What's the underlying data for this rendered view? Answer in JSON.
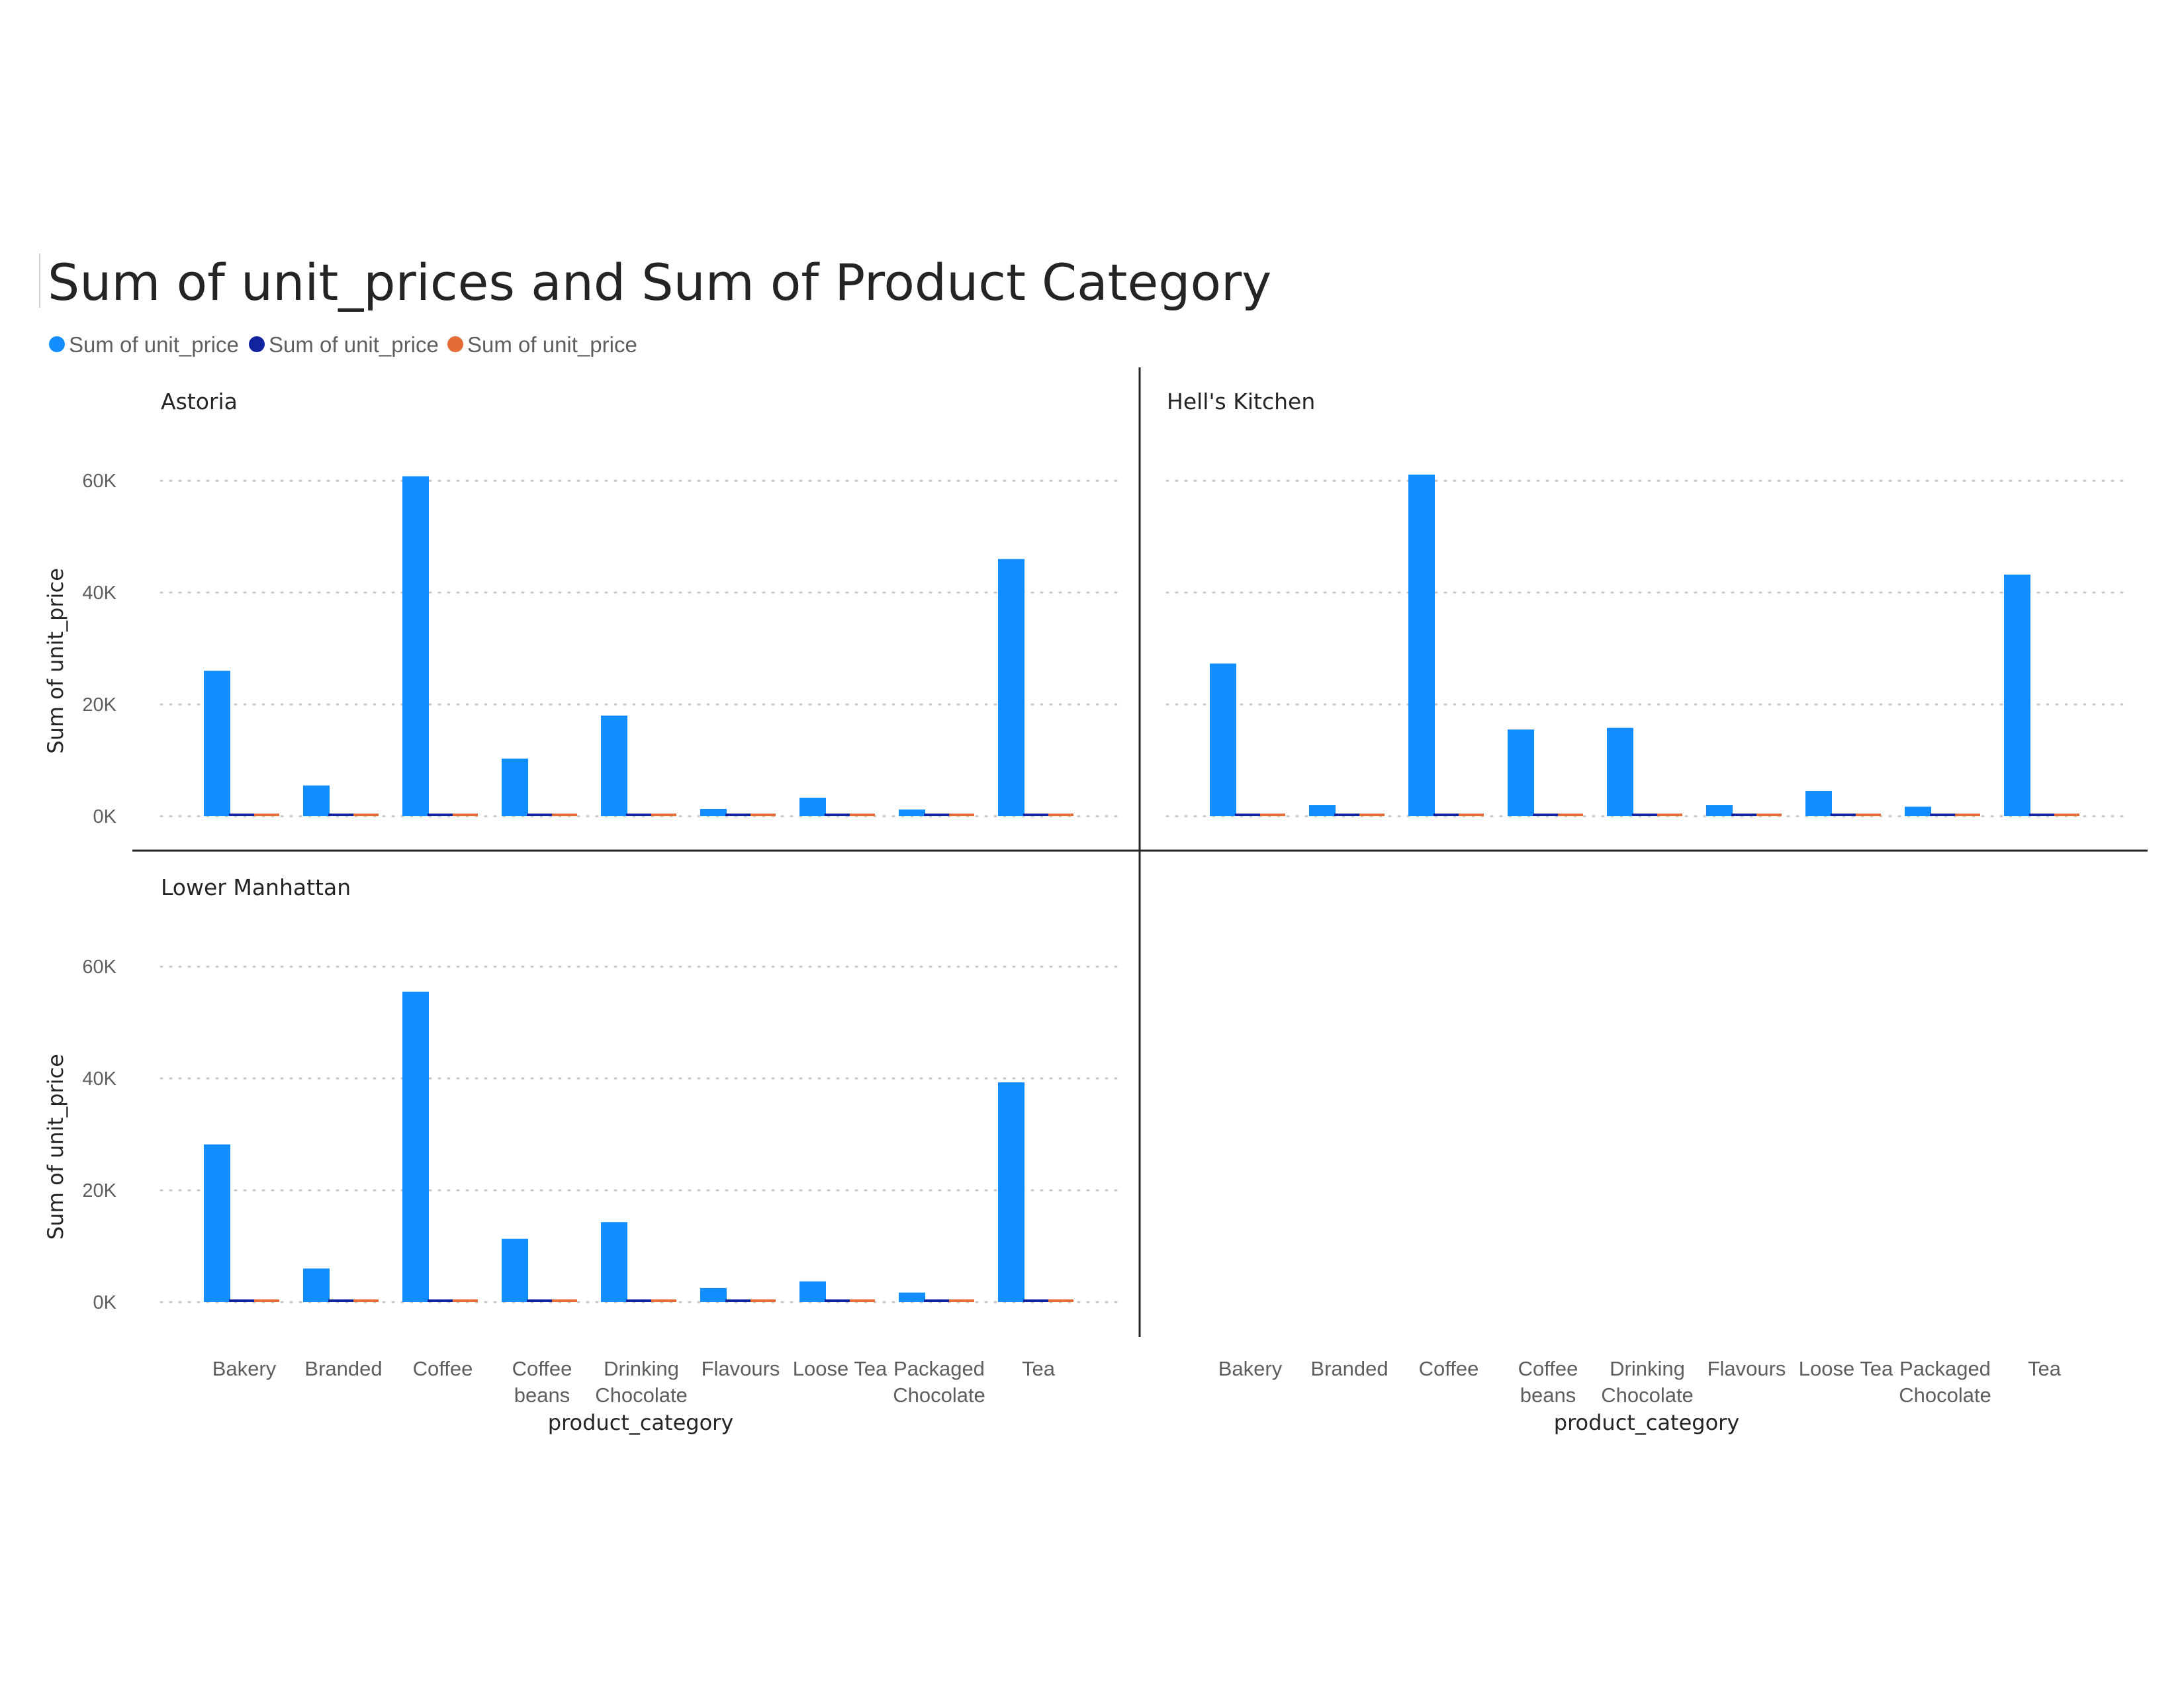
{
  "title": "Sum of unit_prices and Sum of Product Category",
  "legend": [
    {
      "label": "Sum of unit_price",
      "color": "#118DFF"
    },
    {
      "label": "Sum of unit_price",
      "color": "#12239E"
    },
    {
      "label": "Sum of unit_price",
      "color": "#E66C37"
    }
  ],
  "chart_data": {
    "type": "bar",
    "layout": "small-multiples",
    "legend_position": "top-left",
    "grid": true,
    "ylabel": "Sum of unit_price",
    "xlabel": "product_category",
    "ylim": [
      0,
      65000
    ],
    "yticks": [
      0,
      20000,
      40000,
      60000
    ],
    "ytick_labels": [
      "0K",
      "20K",
      "40K",
      "60K"
    ],
    "categories": [
      "Bakery",
      "Branded",
      "Coffee",
      "Coffee beans",
      "Drinking Chocolate",
      "Flavours",
      "Loose Tea",
      "Packaged Chocolate",
      "Tea"
    ],
    "category_lines": [
      [
        "Bakery"
      ],
      [
        "Branded"
      ],
      [
        "Coffee"
      ],
      [
        "Coffee",
        "beans"
      ],
      [
        "Drinking",
        "Chocolate"
      ],
      [
        "Flavours"
      ],
      [
        "Loose Tea"
      ],
      [
        "Packaged",
        "Chocolate"
      ],
      [
        "Tea"
      ]
    ],
    "panels": [
      {
        "name": "Astoria",
        "series": [
          {
            "name": "Sum of unit_price",
            "color": "#118DFF",
            "values": [
              26000,
              5500,
              60800,
              10300,
              18000,
              1300,
              3300,
              1200,
              46000
            ]
          },
          {
            "name": "Sum of unit_price",
            "color": "#12239E",
            "values": [
              400,
              400,
              400,
              400,
              400,
              400,
              400,
              400,
              400
            ]
          },
          {
            "name": "Sum of unit_price",
            "color": "#E66C37",
            "values": [
              400,
              400,
              400,
              400,
              400,
              400,
              400,
              400,
              400
            ]
          }
        ]
      },
      {
        "name": "Hell's Kitchen",
        "series": [
          {
            "name": "Sum of unit_price",
            "color": "#118DFF",
            "values": [
              27300,
              2000,
              61100,
              15500,
              15800,
              2000,
              4500,
              1700,
              43200
            ]
          },
          {
            "name": "Sum of unit_price",
            "color": "#12239E",
            "values": [
              400,
              400,
              400,
              400,
              400,
              400,
              400,
              400,
              400
            ]
          },
          {
            "name": "Sum of unit_price",
            "color": "#E66C37",
            "values": [
              400,
              400,
              400,
              400,
              400,
              400,
              400,
              400,
              400
            ]
          }
        ]
      },
      {
        "name": "Lower Manhattan",
        "series": [
          {
            "name": "Sum of unit_price",
            "color": "#118DFF",
            "values": [
              28200,
              6000,
              55500,
              11300,
              14300,
              2500,
              3700,
              1700,
              39300
            ]
          },
          {
            "name": "Sum of unit_price",
            "color": "#12239E",
            "values": [
              400,
              400,
              400,
              400,
              400,
              400,
              400,
              400,
              400
            ]
          },
          {
            "name": "Sum of unit_price",
            "color": "#E66C37",
            "values": [
              400,
              400,
              400,
              400,
              400,
              400,
              400,
              400,
              400
            ]
          }
        ]
      }
    ]
  }
}
